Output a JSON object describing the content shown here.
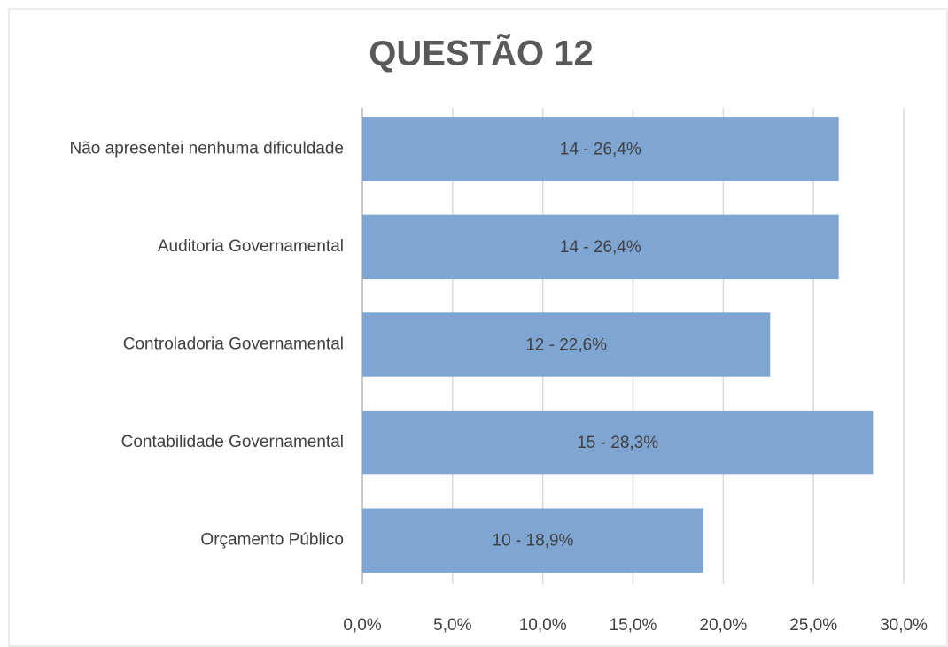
{
  "chart_data": {
    "type": "bar",
    "orientation": "horizontal",
    "title": "QUESTÃO 12",
    "categories": [
      "Não apresentei nenhuma dificuldade",
      "Auditoria Governamental",
      "Controladoria Governamental",
      "Contabilidade Governamental",
      "Orçamento Público"
    ],
    "values": [
      26.4,
      26.4,
      22.6,
      28.3,
      18.9
    ],
    "value_labels": [
      "14 - 26,4%",
      "14 - 26,4%",
      "12 - 22,6%",
      "15 - 28,3%",
      "10 - 18,9%"
    ],
    "color": "#7fa6d2",
    "xlim": [
      0,
      30
    ],
    "xticks": [
      {
        "value": 0,
        "label": "0,0%"
      },
      {
        "value": 5,
        "label": "5,0%"
      },
      {
        "value": 10,
        "label": "10,0%"
      },
      {
        "value": 15,
        "label": "15,0%"
      },
      {
        "value": 20,
        "label": "20,0%"
      },
      {
        "value": 25,
        "label": "25,0%"
      },
      {
        "value": 30,
        "label": "30,0%"
      }
    ],
    "grid": true
  }
}
